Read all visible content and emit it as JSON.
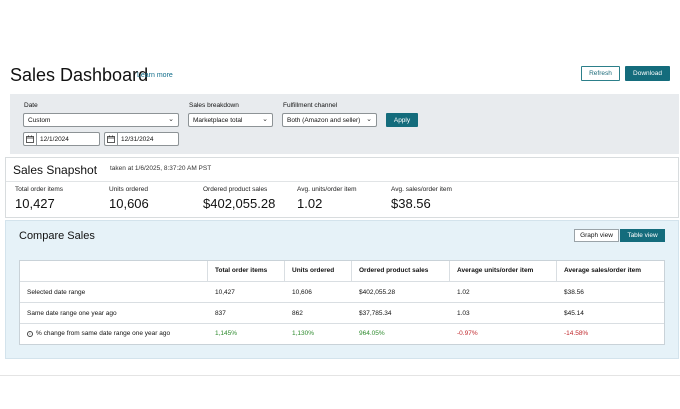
{
  "header": {
    "title": "Sales Dashboard",
    "learn_more": "Learn more",
    "refresh_label": "Refresh",
    "download_label": "Download"
  },
  "filters": {
    "date_label": "Date",
    "date_value": "Custom",
    "start_date": "12/1/2024",
    "end_date": "12/31/2024",
    "breakdown_label": "Sales breakdown",
    "breakdown_value": "Marketplace total",
    "fulfillment_label": "Fulfillment channel",
    "fulfillment_value": "Both (Amazon and seller)",
    "apply_label": "Apply"
  },
  "snapshot": {
    "title": "Sales Snapshot",
    "taken_at": "taken at 1/6/2025, 8:37:20 AM PST",
    "metrics": [
      {
        "label": "Total order items",
        "value": "10,427"
      },
      {
        "label": "Units ordered",
        "value": "10,606"
      },
      {
        "label": "Ordered product sales",
        "value": "$402,055.28"
      },
      {
        "label": "Avg. units/order item",
        "value": "1.02"
      },
      {
        "label": "Avg. sales/order item",
        "value": "$38.56"
      }
    ]
  },
  "compare": {
    "title": "Compare Sales",
    "graph_view_label": "Graph view",
    "table_view_label": "Table view",
    "columns": [
      "",
      "Total order items",
      "Units ordered",
      "Ordered product sales",
      "Average units/order item",
      "Average sales/order item"
    ],
    "rows": [
      {
        "label": "Selected date range",
        "cells": [
          "10,427",
          "10,606",
          "$402,055.28",
          "1.02",
          "$38.56"
        ]
      },
      {
        "label": "Same date range one year ago",
        "cells": [
          "837",
          "862",
          "$37,785.34",
          "1.03",
          "$45.14"
        ]
      },
      {
        "label": "% change from same date range one year ago",
        "cells": [
          "1,145%",
          "1,130%",
          "964.05%",
          "-0.97%",
          "-14.58%"
        ]
      }
    ]
  },
  "colors": {
    "accent": "#146c7c",
    "positive": "#2e8b2e",
    "negative": "#c0282d",
    "compare_bg": "#e6f2f8",
    "filter_bg": "#e8ebee"
  }
}
